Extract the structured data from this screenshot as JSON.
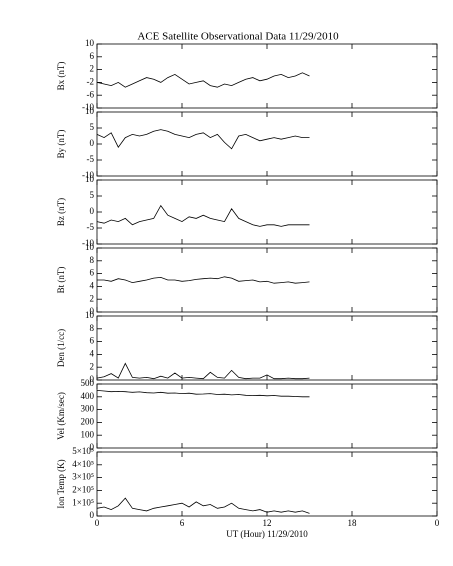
{
  "chart_data": [
    {
      "type": "line",
      "title": "ACE Satellite Observational Data   11/29/2010",
      "ylabel": "Bx (nT)",
      "color": "#000000",
      "x": [
        0,
        0.5,
        1,
        1.5,
        2,
        2.5,
        3,
        3.5,
        4,
        4.5,
        5,
        5.5,
        6,
        6.5,
        7,
        7.5,
        8,
        8.5,
        9,
        9.5,
        10,
        10.5,
        11,
        11.5,
        12,
        12.5,
        13,
        13.5,
        14,
        14.5,
        15
      ],
      "values": [
        -2,
        -2.5,
        -3,
        -2,
        -3.5,
        -2.5,
        -1.5,
        -0.5,
        -1,
        -2,
        -0.5,
        0.5,
        -1,
        -2.5,
        -2,
        -1.5,
        -3,
        -3.5,
        -2.5,
        -3,
        -2,
        -1,
        -0.5,
        -1.5,
        -1,
        0,
        0.5,
        -0.5,
        0,
        1,
        0
      ],
      "ylim": [
        -10,
        10
      ],
      "yticks": [
        -10,
        -6,
        -2,
        2,
        6,
        10
      ]
    },
    {
      "type": "line",
      "ylabel": "By (nT)",
      "color": "#000000",
      "x": [
        0,
        0.5,
        1,
        1.5,
        2,
        2.5,
        3,
        3.5,
        4,
        4.5,
        5,
        5.5,
        6,
        6.5,
        7,
        7.5,
        8,
        8.5,
        9,
        9.5,
        10,
        10.5,
        11,
        11.5,
        12,
        12.5,
        13,
        13.5,
        14,
        14.5,
        15
      ],
      "values": [
        3,
        2,
        3.5,
        -1,
        2,
        3,
        2.5,
        3,
        4,
        4.5,
        4,
        3,
        2.5,
        2,
        3,
        3.5,
        2,
        3,
        0.5,
        -1.5,
        2.5,
        3,
        2,
        1,
        1.5,
        2,
        1.5,
        2,
        2.5,
        2,
        2
      ],
      "ylim": [
        -10,
        10
      ],
      "yticks": [
        -10,
        -5,
        0,
        5,
        10
      ]
    },
    {
      "type": "line",
      "ylabel": "Bz (nT)",
      "color": "#000000",
      "x": [
        0,
        0.5,
        1,
        1.5,
        2,
        2.5,
        3,
        3.5,
        4,
        4.5,
        5,
        5.5,
        6,
        6.5,
        7,
        7.5,
        8,
        8.5,
        9,
        9.5,
        10,
        10.5,
        11,
        11.5,
        12,
        12.5,
        13,
        13.5,
        14,
        14.5,
        15
      ],
      "values": [
        -3,
        -3.5,
        -2.5,
        -3,
        -2,
        -4,
        -3,
        -2.5,
        -2,
        2,
        -1,
        -2,
        -3,
        -1.5,
        -2,
        -1,
        -2,
        -2.5,
        -3,
        1,
        -2,
        -3,
        -4,
        -4.5,
        -4,
        -4,
        -4.5,
        -4,
        -4,
        -4,
        -4
      ],
      "ylim": [
        -10,
        10
      ],
      "yticks": [
        -10,
        -5,
        0,
        5,
        10
      ]
    },
    {
      "type": "line",
      "ylabel": "Bt (nT)",
      "color": "#000000",
      "x": [
        0,
        0.5,
        1,
        1.5,
        2,
        2.5,
        3,
        3.5,
        4,
        4.5,
        5,
        5.5,
        6,
        6.5,
        7,
        7.5,
        8,
        8.5,
        9,
        9.5,
        10,
        10.5,
        11,
        11.5,
        12,
        12.5,
        13,
        13.5,
        14,
        14.5,
        15
      ],
      "values": [
        5,
        5,
        4.8,
        5.2,
        5,
        4.6,
        4.8,
        5,
        5.3,
        5.4,
        5,
        5,
        4.8,
        4.9,
        5.1,
        5.2,
        5.3,
        5.2,
        5.5,
        5.3,
        4.8,
        4.9,
        5,
        4.7,
        4.8,
        4.5,
        4.6,
        4.7,
        4.5,
        4.6,
        4.7
      ],
      "ylim": [
        0,
        10
      ],
      "yticks": [
        0,
        2,
        4,
        6,
        8,
        10
      ]
    },
    {
      "type": "line",
      "ylabel": "Den (1/cc)",
      "color": "#000000",
      "x": [
        0,
        0.5,
        1,
        1.5,
        2,
        2.5,
        3,
        3.5,
        4,
        4.5,
        5,
        5.5,
        6,
        6.5,
        7,
        7.5,
        8,
        8.5,
        9,
        9.5,
        10,
        10.5,
        11,
        11.5,
        12,
        12.5,
        13,
        13.5,
        14,
        14.5,
        15
      ],
      "values": [
        0.3,
        0.5,
        1,
        0.3,
        2.6,
        0.4,
        0.3,
        0.4,
        0.2,
        0.6,
        0.3,
        1.1,
        0.3,
        0.4,
        0.3,
        0.2,
        1.2,
        0.4,
        0.3,
        1.5,
        0.4,
        0.2,
        0.3,
        0.3,
        0.8,
        0.2,
        0.2,
        0.3,
        0.2,
        0.2,
        0.3
      ],
      "ylim": [
        0,
        10
      ],
      "yticks": [
        0,
        2,
        4,
        6,
        8,
        10
      ]
    },
    {
      "type": "line",
      "ylabel": "Vel (Km/sec)",
      "color": "#000000",
      "x": [
        0,
        0.5,
        1,
        1.5,
        2,
        2.5,
        3,
        3.5,
        4,
        4.5,
        5,
        5.5,
        6,
        6.5,
        7,
        7.5,
        8,
        8.5,
        9,
        9.5,
        10,
        10.5,
        11,
        11.5,
        12,
        12.5,
        13,
        13.5,
        14,
        14.5,
        15
      ],
      "values": [
        450,
        445,
        440,
        442,
        440,
        435,
        438,
        432,
        430,
        435,
        428,
        430,
        425,
        428,
        420,
        422,
        425,
        418,
        420,
        415,
        418,
        412,
        410,
        412,
        408,
        410,
        405,
        405,
        402,
        400,
        400
      ],
      "ylim": [
        0,
        500
      ],
      "yticks": [
        0,
        100,
        200,
        300,
        400,
        500
      ]
    },
    {
      "type": "line",
      "ylabel": "Ion Temp (K)",
      "xlabel": "UT (Hour)  11/29/2010",
      "color": "#000000",
      "x": [
        0,
        0.5,
        1,
        1.5,
        2,
        2.5,
        3,
        3.5,
        4,
        4.5,
        5,
        5.5,
        6,
        6.5,
        7,
        7.5,
        8,
        8.5,
        9,
        9.5,
        10,
        10.5,
        11,
        11.5,
        12,
        12.5,
        13,
        13.5,
        14,
        14.5,
        15
      ],
      "values": [
        60000,
        70000,
        50000,
        80000,
        140000,
        60000,
        50000,
        40000,
        60000,
        70000,
        80000,
        90000,
        100000,
        70000,
        110000,
        80000,
        90000,
        60000,
        70000,
        100000,
        60000,
        50000,
        40000,
        50000,
        30000,
        40000,
        30000,
        40000,
        30000,
        40000,
        20000
      ],
      "ylim": [
        0,
        500000
      ],
      "yticks": [
        0,
        {
          "value": 100000,
          "label": "1×10⁵"
        },
        {
          "value": 200000,
          "label": "2×10⁵"
        },
        {
          "value": 300000,
          "label": "3×10⁵"
        },
        {
          "value": 400000,
          "label": "4×10⁵"
        },
        {
          "value": 500000,
          "label": "5×10⁵"
        }
      ],
      "xlim": [
        0,
        24
      ],
      "xticks": [
        0,
        6,
        12,
        18,
        {
          "value": 24,
          "label": "0"
        }
      ]
    }
  ]
}
